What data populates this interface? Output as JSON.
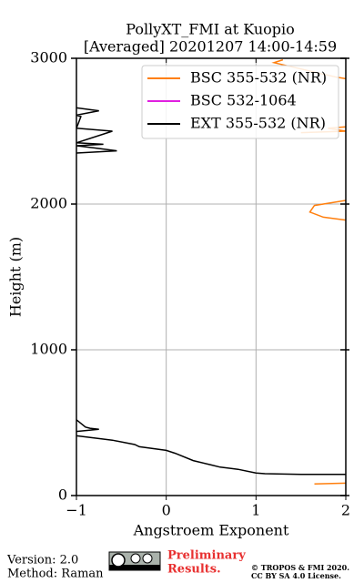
{
  "chart_data": {
    "type": "line",
    "title": "PollyXT_FMI at Kuopio",
    "subtitle": "[Averaged] 20201207 14:00-14:59",
    "xlabel": "Angstroem Exponent",
    "ylabel": "Height (m)",
    "xlim": [
      -1,
      2
    ],
    "xticks": [
      {
        "value": -1,
        "label": "−1"
      },
      0,
      1,
      2
    ],
    "ylim": [
      0,
      3000
    ],
    "yticks": [
      0,
      1000,
      2000,
      3000
    ],
    "grid": true,
    "legend": "upper right",
    "series": [
      {
        "name": "BSC 355-532 (NR)",
        "color": "#ff7f0e",
        "values": [
          1.65,
          2.0,
          null,
          2.0,
          1.75,
          1.6,
          1.65,
          2.0,
          null,
          1.5,
          2.0,
          1.8,
          2.0,
          null,
          2.0,
          1.9,
          1.2,
          1.3
        ],
        "heights": [
          80,
          85,
          null,
          1890,
          1910,
          1945,
          1990,
          2025,
          null,
          2490,
          2500,
          2520,
          2530,
          null,
          2860,
          2870,
          2970,
          2990
        ]
      },
      {
        "name": "BSC 532-1064",
        "color": "#e020e0",
        "values": [],
        "heights": []
      },
      {
        "name": "EXT 355-532 (NR)",
        "color": "#000000",
        "values": [
          2.0,
          1.5,
          1.1,
          1.0,
          0.8,
          0.6,
          0.5,
          0.3,
          0.1,
          0.0,
          -0.3,
          -0.35,
          -0.6,
          -1.0,
          null,
          -1.0,
          -0.75,
          -0.85,
          -0.9,
          -1.0,
          null,
          -1.0,
          -0.55,
          -0.8,
          -1.0,
          -0.7,
          -1.0,
          -0.6,
          -1.0,
          -0.95,
          -1.0,
          -0.75,
          -1.0
        ],
        "heights": [
          145,
          145,
          150,
          155,
          180,
          195,
          210,
          240,
          290,
          310,
          335,
          350,
          380,
          410,
          null,
          440,
          455,
          462,
          470,
          520,
          null,
          2350,
          2365,
          2385,
          2400,
          2410,
          2420,
          2500,
          2520,
          2600,
          2610,
          2640,
          2660
        ]
      }
    ]
  },
  "footer": {
    "version": "Version: 2.0",
    "method": "Method: Raman",
    "notice": [
      "Preliminary",
      "Results."
    ],
    "copyright": [
      "© TROPOS & FMI 2020.",
      "CC BY SA 4.0 License."
    ]
  }
}
